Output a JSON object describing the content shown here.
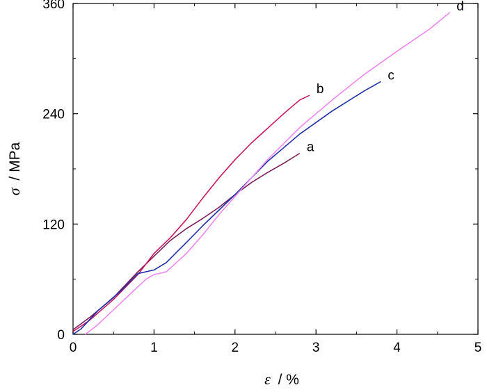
{
  "chart_data": {
    "type": "line",
    "xlabel": {
      "symbol": "ε",
      "unit": "/ %"
    },
    "ylabel": {
      "symbol": "σ",
      "unit": "/ MPa"
    },
    "xlim": [
      0,
      5
    ],
    "ylim": [
      0,
      360
    ],
    "xticks": [
      0,
      1,
      2,
      3,
      4,
      5
    ],
    "yticks": [
      0,
      120,
      240,
      360
    ],
    "grid": false,
    "series": [
      {
        "name": "a",
        "color": "#7a1f5c",
        "points": [
          [
            0,
            5
          ],
          [
            0.2,
            18
          ],
          [
            0.5,
            40
          ],
          [
            0.8,
            68
          ],
          [
            1.0,
            85
          ],
          [
            1.2,
            102
          ],
          [
            1.4,
            115
          ],
          [
            1.6,
            126
          ],
          [
            1.8,
            138
          ],
          [
            2.0,
            152
          ],
          [
            2.2,
            165
          ],
          [
            2.4,
            176
          ],
          [
            2.6,
            186
          ],
          [
            2.8,
            197
          ]
        ]
      },
      {
        "name": "b",
        "color": "#c8175f",
        "points": [
          [
            0,
            3
          ],
          [
            0.2,
            15
          ],
          [
            0.5,
            38
          ],
          [
            0.8,
            65
          ],
          [
            1.0,
            88
          ],
          [
            1.2,
            105
          ],
          [
            1.4,
            125
          ],
          [
            1.6,
            148
          ],
          [
            1.8,
            170
          ],
          [
            2.0,
            190
          ],
          [
            2.2,
            208
          ],
          [
            2.4,
            224
          ],
          [
            2.6,
            240
          ],
          [
            2.8,
            255
          ],
          [
            2.92,
            260
          ]
        ]
      },
      {
        "name": "c",
        "color": "#1f2fa6",
        "points": [
          [
            0,
            0
          ],
          [
            0.1,
            6
          ],
          [
            0.3,
            25
          ],
          [
            0.6,
            48
          ],
          [
            0.8,
            66
          ],
          [
            1.0,
            70
          ],
          [
            1.15,
            78
          ],
          [
            1.4,
            100
          ],
          [
            1.6,
            118
          ],
          [
            1.8,
            135
          ],
          [
            2.0,
            152
          ],
          [
            2.4,
            188
          ],
          [
            2.8,
            218
          ],
          [
            3.2,
            243
          ],
          [
            3.6,
            265
          ],
          [
            3.8,
            275
          ]
        ]
      },
      {
        "name": "d",
        "color": "#ee88ee",
        "points": [
          [
            0.15,
            0
          ],
          [
            0.3,
            10
          ],
          [
            0.6,
            35
          ],
          [
            0.9,
            60
          ],
          [
            1.0,
            65
          ],
          [
            1.15,
            68
          ],
          [
            1.4,
            88
          ],
          [
            1.6,
            108
          ],
          [
            1.8,
            130
          ],
          [
            2.0,
            150
          ],
          [
            2.4,
            190
          ],
          [
            2.8,
            225
          ],
          [
            3.2,
            255
          ],
          [
            3.6,
            283
          ],
          [
            4.0,
            308
          ],
          [
            4.4,
            332
          ],
          [
            4.65,
            350
          ]
        ]
      }
    ]
  }
}
